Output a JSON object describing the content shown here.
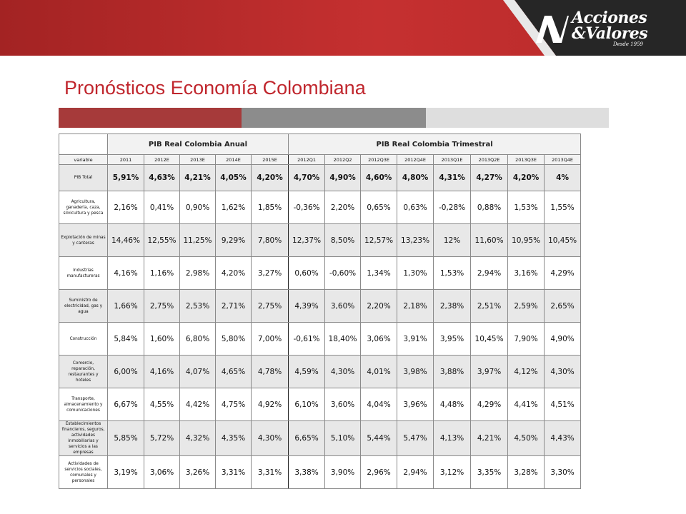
{
  "header": {
    "logo_name_line1": "Acciones",
    "logo_name_line2": "&Valores",
    "logo_since": "Desde 1959",
    "brand_red": "#c53030",
    "dark_gray": "#262626"
  },
  "page_title": "Pronósticos Economía Colombiana",
  "table": {
    "group_annual": "PIB Real Colombia Anual",
    "group_quarterly": "PIB Real Colombia Trimestral",
    "columns": [
      "variable",
      "2011",
      "2012E",
      "2013E",
      "2014E",
      "2015E",
      "2012Q1",
      "2012Q2",
      "2012Q3E",
      "2012Q4E",
      "2013Q1E",
      "2013Q2E",
      "2013Q3E",
      "2013Q4E"
    ],
    "rows": [
      {
        "label": "PIB Total",
        "values": [
          "5,91%",
          "4,63%",
          "4,21%",
          "4,05%",
          "4,20%",
          "4,70%",
          "4,90%",
          "4,60%",
          "4,80%",
          "4,31%",
          "4,27%",
          "4,20%",
          "4%"
        ]
      },
      {
        "label": "Agricultura, ganadería, caza, silvicultura y pesca",
        "values": [
          "2,16%",
          "0,41%",
          "0,90%",
          "1,62%",
          "1,85%",
          "-0,36%",
          "2,20%",
          "0,65%",
          "0,63%",
          "-0,28%",
          "0,88%",
          "1,53%",
          "1,55%"
        ]
      },
      {
        "label": "Explotación de minas y canteras",
        "values": [
          "14,46%",
          "12,55%",
          "11,25%",
          "9,29%",
          "7,80%",
          "12,37%",
          "8,50%",
          "12,57%",
          "13,23%",
          "12%",
          "11,60%",
          "10,95%",
          "10,45%"
        ]
      },
      {
        "label": "Industrias manufactureras",
        "values": [
          "4,16%",
          "1,16%",
          "2,98%",
          "4,20%",
          "3,27%",
          "0,60%",
          "-0,60%",
          "1,34%",
          "1,30%",
          "1,53%",
          "2,94%",
          "3,16%",
          "4,29%"
        ]
      },
      {
        "label": "Suministro de electricidad, gas y agua",
        "values": [
          "1,66%",
          "2,75%",
          "2,53%",
          "2,71%",
          "2,75%",
          "4,39%",
          "3,60%",
          "2,20%",
          "2,18%",
          "2,38%",
          "2,51%",
          "2,59%",
          "2,65%"
        ]
      },
      {
        "label": "Construcción",
        "values": [
          "5,84%",
          "1,60%",
          "6,80%",
          "5,80%",
          "7,00%",
          "-0,61%",
          "18,40%",
          "3,06%",
          "3,91%",
          "3,95%",
          "10,45%",
          "7,90%",
          "4,90%"
        ]
      },
      {
        "label": "Comercio, reparación, restaurantes y hoteles",
        "values": [
          "6,00%",
          "4,16%",
          "4,07%",
          "4,65%",
          "4,78%",
          "4,59%",
          "4,30%",
          "4,01%",
          "3,98%",
          "3,88%",
          "3,97%",
          "4,12%",
          "4,30%"
        ]
      },
      {
        "label": "Transporte, almacenamiento y comunicaciones",
        "values": [
          "6,67%",
          "4,55%",
          "4,42%",
          "4,75%",
          "4,92%",
          "6,10%",
          "3,60%",
          "4,04%",
          "3,96%",
          "4,48%",
          "4,29%",
          "4,41%",
          "4,51%"
        ]
      },
      {
        "label": "Establecimientos financieros, seguros, actividades inmobiliarias y servicios a las empresas",
        "values": [
          "5,85%",
          "5,72%",
          "4,32%",
          "4,35%",
          "4,30%",
          "6,65%",
          "5,10%",
          "5,44%",
          "5,47%",
          "4,13%",
          "4,21%",
          "4,50%",
          "4,43%"
        ]
      },
      {
        "label": "Actividades de servicios sociales, comunales y personales",
        "values": [
          "3,19%",
          "3,06%",
          "3,26%",
          "3,31%",
          "3,31%",
          "3,38%",
          "3,90%",
          "2,96%",
          "2,94%",
          "3,12%",
          "3,35%",
          "3,28%",
          "3,30%"
        ]
      }
    ]
  }
}
